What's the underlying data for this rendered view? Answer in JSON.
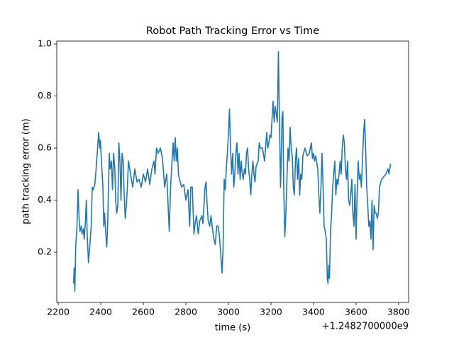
{
  "chart_data": {
    "type": "line",
    "title": "Robot Path Tracking Error vs Time",
    "x_label": "time (s)",
    "y_label": "path tracking error (m)",
    "x_offset_text": "+1.2482700000e9",
    "xlim": [
      2193,
      3847
    ],
    "ylim": [
      0.007,
      1.011
    ],
    "xticks": [
      2200,
      2400,
      2600,
      2800,
      3000,
      3200,
      3400,
      3600,
      3800
    ],
    "yticks": [
      0.2,
      0.4,
      0.6,
      0.8,
      {
        "value": 1,
        "label": "1.0"
      }
    ],
    "grid": false,
    "series": [
      {
        "color": "#1f77b4",
        "x": [
          2272,
          2275,
          2278,
          2282,
          2288,
          2293,
          2298,
          2302,
          2308,
          2312,
          2318,
          2322,
          2328,
          2332,
          2336,
          2342,
          2348,
          2355,
          2360,
          2365,
          2372,
          2378,
          2385,
          2390,
          2395,
          2398,
          2403,
          2410,
          2414,
          2418,
          2422,
          2428,
          2432,
          2436,
          2440,
          2444,
          2450,
          2455,
          2460,
          2466,
          2470,
          2475,
          2480,
          2485,
          2490,
          2495,
          2500,
          2505,
          2510,
          2515,
          2520,
          2525,
          2530,
          2540,
          2550,
          2560,
          2570,
          2580,
          2590,
          2600,
          2610,
          2620,
          2630,
          2640,
          2650,
          2655,
          2662,
          2670,
          2680,
          2690,
          2700,
          2710,
          2718,
          2722,
          2728,
          2735,
          2740,
          2745,
          2750,
          2755,
          2760,
          2765,
          2770,
          2780,
          2790,
          2800,
          2810,
          2818,
          2823,
          2830,
          2838,
          2845,
          2850,
          2858,
          2865,
          2875,
          2880,
          2890,
          2895,
          2900,
          2905,
          2912,
          2918,
          2925,
          2932,
          2938,
          2945,
          2952,
          2958,
          2965,
          2970,
          2975,
          2980,
          2985,
          2990,
          2995,
          3000,
          3005,
          3010,
          3015,
          3020,
          3025,
          3030,
          3035,
          3040,
          3045,
          3050,
          3055,
          3060,
          3065,
          3070,
          3075,
          3080,
          3085,
          3090,
          3095,
          3100,
          3105,
          3110,
          3115,
          3120,
          3125,
          3130,
          3140,
          3145,
          3150,
          3160,
          3170,
          3180,
          3185,
          3190,
          3195,
          3200,
          3210,
          3215,
          3220,
          3230,
          3235,
          3240,
          3245,
          3248,
          3252,
          3256,
          3260,
          3265,
          3270,
          3275,
          3280,
          3285,
          3290,
          3295,
          3300,
          3305,
          3310,
          3315,
          3320,
          3325,
          3330,
          3335,
          3340,
          3345,
          3350,
          3360,
          3370,
          3380,
          3390,
          3395,
          3400,
          3405,
          3410,
          3420,
          3425,
          3430,
          3435,
          3440,
          3445,
          3450,
          3455,
          3460,
          3465,
          3468,
          3472,
          3475,
          3480,
          3485,
          3490,
          3495,
          3500,
          3505,
          3510,
          3515,
          3520,
          3525,
          3530,
          3535,
          3540,
          3545,
          3550,
          3555,
          3560,
          3565,
          3570,
          3575,
          3580,
          3585,
          3590,
          3595,
          3600,
          3605,
          3610,
          3615,
          3620,
          3625,
          3630,
          3635,
          3640,
          3645,
          3650,
          3655,
          3660,
          3665,
          3670,
          3675,
          3680,
          3685,
          3690,
          3695,
          3700,
          3705,
          3710,
          3720,
          3730,
          3740,
          3750,
          3755,
          3762
        ],
        "values": [
          0.08,
          0.14,
          0.05,
          0.22,
          0.3,
          0.44,
          0.33,
          0.28,
          0.3,
          0.27,
          0.29,
          0.25,
          0.32,
          0.4,
          0.27,
          0.16,
          0.22,
          0.3,
          0.45,
          0.44,
          0.46,
          0.52,
          0.6,
          0.66,
          0.6,
          0.63,
          0.55,
          0.45,
          0.3,
          0.35,
          0.29,
          0.22,
          0.3,
          0.44,
          0.58,
          0.52,
          0.55,
          0.44,
          0.58,
          0.52,
          0.4,
          0.35,
          0.38,
          0.62,
          0.55,
          0.4,
          0.58,
          0.55,
          0.42,
          0.33,
          0.38,
          0.45,
          0.55,
          0.5,
          0.45,
          0.52,
          0.47,
          0.48,
          0.45,
          0.5,
          0.47,
          0.52,
          0.46,
          0.52,
          0.55,
          0.5,
          0.6,
          0.58,
          0.6,
          0.56,
          0.45,
          0.5,
          0.35,
          0.28,
          0.45,
          0.55,
          0.62,
          0.55,
          0.64,
          0.55,
          0.6,
          0.5,
          0.48,
          0.45,
          0.46,
          0.4,
          0.44,
          0.3,
          0.45,
          0.45,
          0.27,
          0.32,
          0.34,
          0.27,
          0.32,
          0.34,
          0.31,
          0.45,
          0.47,
          0.38,
          0.32,
          0.3,
          0.34,
          0.29,
          0.25,
          0.23,
          0.3,
          0.3,
          0.26,
          0.18,
          0.12,
          0.22,
          0.48,
          0.44,
          0.52,
          0.58,
          0.65,
          0.75,
          0.6,
          0.5,
          0.58,
          0.45,
          0.5,
          0.58,
          0.62,
          0.5,
          0.58,
          0.48,
          0.55,
          0.5,
          0.48,
          0.52,
          0.5,
          0.58,
          0.6,
          0.52,
          0.48,
          0.42,
          0.5,
          0.55,
          0.5,
          0.47,
          0.53,
          0.55,
          0.62,
          0.6,
          0.6,
          0.55,
          0.66,
          0.6,
          0.62,
          0.65,
          0.64,
          0.78,
          0.7,
          0.76,
          0.7,
          0.97,
          0.7,
          0.45,
          0.55,
          0.72,
          0.74,
          0.45,
          0.26,
          0.35,
          0.48,
          0.6,
          0.55,
          0.68,
          0.6,
          0.57,
          0.45,
          0.42,
          0.55,
          0.6,
          0.48,
          0.56,
          0.42,
          0.5,
          0.48,
          0.57,
          0.6,
          0.57,
          0.58,
          0.62,
          0.56,
          0.58,
          0.55,
          0.57,
          0.52,
          0.42,
          0.35,
          0.45,
          0.58,
          0.45,
          0.3,
          0.28,
          0.25,
          0.1,
          0.08,
          0.15,
          0.1,
          0.28,
          0.35,
          0.45,
          0.5,
          0.55,
          0.42,
          0.48,
          0.46,
          0.5,
          0.55,
          0.5,
          0.6,
          0.65,
          0.62,
          0.52,
          0.48,
          0.55,
          0.4,
          0.38,
          0.42,
          0.48,
          0.35,
          0.3,
          0.46,
          0.25,
          0.42,
          0.55,
          0.48,
          0.5,
          0.45,
          0.55,
          0.65,
          0.71,
          0.6,
          0.45,
          0.38,
          0.3,
          0.32,
          0.25,
          0.4,
          0.21,
          0.38,
          0.35,
          0.35,
          0.33,
          0.35,
          0.45,
          0.48,
          0.49,
          0.5,
          0.52,
          0.5,
          0.54
        ]
      }
    ]
  }
}
